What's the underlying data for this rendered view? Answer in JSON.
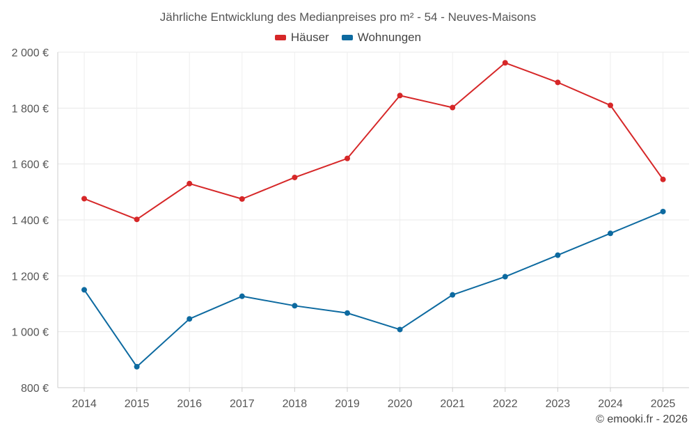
{
  "chart_data": {
    "type": "line",
    "title": "Jährliche Entwicklung des Medianpreises pro m² - 54 - Neuves-Maisons",
    "categories": [
      "2014",
      "2015",
      "2016",
      "2017",
      "2018",
      "2019",
      "2020",
      "2021",
      "2022",
      "2023",
      "2024",
      "2025"
    ],
    "series": [
      {
        "name": "Häuser",
        "color": "#d62728",
        "values": [
          1476,
          1402,
          1530,
          1475,
          1552,
          1620,
          1845,
          1802,
          1962,
          1892,
          1810,
          1545
        ]
      },
      {
        "name": "Wohnungen",
        "color": "#0d6aa0",
        "values": [
          1150,
          875,
          1046,
          1127,
          1093,
          1067,
          1008,
          1132,
          1197,
          1274,
          1352,
          1430
        ]
      }
    ],
    "ylim": [
      800,
      2000
    ],
    "yticks": [
      800,
      1000,
      1200,
      1400,
      1600,
      1800,
      2000
    ],
    "ytick_labels": [
      "800 €",
      "1 000 €",
      "1 200 €",
      "1 400 €",
      "1 600 €",
      "1 800 €",
      "2 000 €"
    ],
    "xlabel": "",
    "ylabel": "",
    "grid": true,
    "legend_position": "top-center"
  },
  "footer": {
    "copyright": "© emooki.fr - 2026"
  }
}
